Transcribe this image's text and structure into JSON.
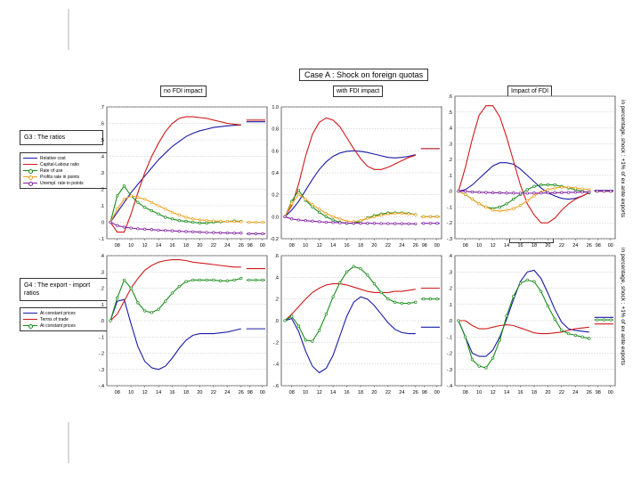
{
  "title": "Case A : Shock on foreign quotas",
  "colors": {
    "relative_cost": "#1a1aa6",
    "capital_labour": "#d11a1a",
    "rate_of_use": "#1a8c1a",
    "profits": "#f0a020",
    "unempl": "#8020a0"
  },
  "column_headers": [
    "no FDI impact",
    "with FDI impact",
    "Impact of FDI"
  ],
  "groups": {
    "g3": {
      "label": "G3 : The ratios",
      "legend": [
        {
          "name": "Relative cost",
          "color": "#1a1aa6",
          "marker": false
        },
        {
          "name": "Capital-Labour ratio",
          "color": "#d11a1a",
          "marker": false
        },
        {
          "name": "Rate of use",
          "color": "#1a8c1a",
          "marker": true
        },
        {
          "name": "Profits rate in points",
          "color": "#f0a020",
          "marker": true
        },
        {
          "name": "Unempl. rate in points",
          "color": "#8020a0",
          "marker": true
        }
      ]
    },
    "g4": {
      "label": "G4 : The export - import ratios",
      "legend": [
        {
          "name": "At constant prices",
          "color": "#1a1aa6",
          "marker": false
        },
        {
          "name": "Terms of trade",
          "color": "#d11a1a",
          "marker": false
        },
        {
          "name": "At constant prices",
          "color": "#1a8c1a",
          "marker": true
        }
      ]
    }
  },
  "right_labels": [
    "in percentage, shock : +1% of ex ante exports",
    "in percentage, shock : +1% of ex ante exports"
  ],
  "chart_data": [
    {
      "type": "line",
      "title": "no FDI impact",
      "ylim": [
        -0.1,
        0.7
      ],
      "yticks": [
        -0.1,
        0,
        0.1,
        0.2,
        0.3,
        0.4,
        0.5,
        0.6,
        0.7
      ],
      "ytick_labels": [
        "-.1",
        "0",
        ".1",
        ".2",
        ".3",
        ".4",
        ".5",
        ".6",
        ".7"
      ],
      "xtick_labels": [
        "08",
        "10",
        "12",
        "14",
        "16",
        "18",
        "20",
        "22",
        "24",
        "26",
        "98",
        "00"
      ],
      "series": [
        {
          "name": "Relative cost",
          "color": "#1a1aa6",
          "marker": false,
          "values": [
            0,
            0.06,
            0.12,
            0.18,
            0.23,
            0.28,
            0.33,
            0.38,
            0.42,
            0.46,
            0.49,
            0.52,
            0.54,
            0.555,
            0.565,
            0.575,
            0.58,
            0.585,
            0.588,
            0.59
          ],
          "long_run": 0.61
        },
        {
          "name": "Capital-Labour ratio",
          "color": "#d11a1a",
          "marker": false,
          "values": [
            0,
            -0.06,
            -0.06,
            0.05,
            0.18,
            0.3,
            0.4,
            0.48,
            0.55,
            0.6,
            0.63,
            0.64,
            0.64,
            0.635,
            0.63,
            0.62,
            0.61,
            0.6,
            0.595,
            0.59
          ],
          "long_run": 0.62
        },
        {
          "name": "Rate of use",
          "color": "#1a8c1a",
          "marker": true,
          "values": [
            0,
            0.16,
            0.22,
            0.16,
            0.12,
            0.09,
            0.07,
            0.05,
            0.03,
            0.02,
            0.01,
            0.005,
            0,
            -0.005,
            -0.005,
            0,
            0.003,
            0.005,
            0.007,
            0.005
          ],
          "long_run": 0
        },
        {
          "name": "Profits rate in points",
          "color": "#f0a020",
          "marker": true,
          "values": [
            0,
            0.08,
            0.14,
            0.16,
            0.15,
            0.14,
            0.12,
            0.1,
            0.08,
            0.06,
            0.045,
            0.03,
            0.02,
            0.015,
            0.01,
            0.008,
            0.006,
            0.005,
            0.004,
            0.003
          ],
          "long_run": 0
        },
        {
          "name": "Unempl. rate in points",
          "color": "#8020a0",
          "marker": true,
          "values": [
            0,
            -0.02,
            -0.03,
            -0.035,
            -0.04,
            -0.042,
            -0.045,
            -0.048,
            -0.05,
            -0.052,
            -0.055,
            -0.057,
            -0.058,
            -0.06,
            -0.062,
            -0.063,
            -0.064,
            -0.065,
            -0.066,
            -0.066
          ],
          "long_run": -0.07
        }
      ]
    },
    {
      "type": "line",
      "title": "with FDI impact",
      "ylim": [
        -0.2,
        1.0
      ],
      "yticks": [
        -0.2,
        0,
        0.2,
        0.4,
        0.6,
        0.8,
        1.0
      ],
      "ytick_labels": [
        "-0.2",
        "0.0",
        "0.2",
        "0.4",
        "0.6",
        "0.8",
        "1.0"
      ],
      "xtick_labels": [
        "08",
        "10",
        "12",
        "14",
        "16",
        "18",
        "20",
        "22",
        "24",
        "26",
        "98",
        "00"
      ],
      "series": [
        {
          "name": "Relative cost",
          "color": "#1a1aa6",
          "marker": false,
          "values": [
            0,
            0.06,
            0.14,
            0.24,
            0.34,
            0.43,
            0.5,
            0.55,
            0.58,
            0.595,
            0.6,
            0.595,
            0.585,
            0.57,
            0.555,
            0.54,
            0.535,
            0.54,
            0.55,
            0.565
          ],
          "long_run": 0.62
        },
        {
          "name": "Capital-Labour ratio",
          "color": "#d11a1a",
          "marker": false,
          "values": [
            0,
            0.1,
            0.3,
            0.55,
            0.75,
            0.86,
            0.9,
            0.88,
            0.82,
            0.72,
            0.62,
            0.53,
            0.46,
            0.43,
            0.43,
            0.45,
            0.48,
            0.51,
            0.54,
            0.56
          ],
          "long_run": 0.62
        },
        {
          "name": "Rate of use",
          "color": "#1a8c1a",
          "marker": true,
          "values": [
            0,
            0.14,
            0.24,
            0.15,
            0.09,
            0.04,
            0,
            -0.03,
            -0.05,
            -0.06,
            -0.06,
            -0.04,
            -0.01,
            0.01,
            0.025,
            0.035,
            0.035,
            0.035,
            0.03,
            0.02
          ],
          "long_run": 0
        },
        {
          "name": "Profits rate in points",
          "color": "#f0a020",
          "marker": true,
          "values": [
            0,
            0.12,
            0.2,
            0.16,
            0.11,
            0.07,
            0.03,
            0,
            -0.02,
            -0.04,
            -0.045,
            -0.035,
            -0.015,
            0,
            0.015,
            0.025,
            0.03,
            0.03,
            0.025,
            0.02
          ],
          "long_run": 0
        },
        {
          "name": "Unempl. rate in points",
          "color": "#8020a0",
          "marker": true,
          "values": [
            0,
            -0.02,
            -0.03,
            -0.035,
            -0.04,
            -0.045,
            -0.05,
            -0.052,
            -0.055,
            -0.057,
            -0.058,
            -0.06,
            -0.06,
            -0.06,
            -0.062,
            -0.062,
            -0.063,
            -0.063,
            -0.064,
            -0.065
          ],
          "long_run": -0.06
        }
      ]
    },
    {
      "type": "line",
      "title": "Impact of FDI",
      "ylim": [
        -0.3,
        0.6
      ],
      "yticks": [
        -0.3,
        -0.2,
        -0.1,
        0,
        0.1,
        0.2,
        0.3,
        0.4,
        0.5,
        0.6
      ],
      "ytick_labels": [
        "-.3",
        "-.2",
        "-.1",
        ".0",
        ".1",
        ".2",
        ".3",
        ".4",
        ".5",
        ".6"
      ],
      "xtick_labels": [
        "08",
        "10",
        "12",
        "14",
        "16",
        "18",
        "20",
        "22",
        "24",
        "26",
        "98",
        "00"
      ],
      "series": [
        {
          "name": "Relative cost",
          "color": "#1a1aa6",
          "marker": false,
          "values": [
            0,
            0.01,
            0.04,
            0.08,
            0.12,
            0.16,
            0.18,
            0.18,
            0.17,
            0.14,
            0.1,
            0.06,
            0.02,
            -0.01,
            -0.03,
            -0.045,
            -0.05,
            -0.045,
            -0.03,
            -0.01
          ],
          "long_run": 0.005
        },
        {
          "name": "Capital-Labour ratio",
          "color": "#d11a1a",
          "marker": false,
          "values": [
            0,
            0.15,
            0.33,
            0.48,
            0.54,
            0.54,
            0.47,
            0.34,
            0.19,
            0.04,
            -0.08,
            -0.15,
            -0.2,
            -0.2,
            -0.17,
            -0.12,
            -0.08,
            -0.05,
            -0.03,
            -0.01
          ],
          "long_run": 0
        },
        {
          "name": "Rate of use",
          "color": "#1a8c1a",
          "marker": true,
          "values": [
            0,
            -0.02,
            -0.05,
            -0.08,
            -0.1,
            -0.11,
            -0.1,
            -0.08,
            -0.05,
            -0.02,
            0.01,
            0.03,
            0.04,
            0.04,
            0.04,
            0.03,
            0.02,
            0.01,
            0,
            -0.01
          ],
          "long_run": 0
        },
        {
          "name": "Profits rate in points",
          "color": "#f0a020",
          "marker": true,
          "values": [
            0,
            -0.02,
            -0.05,
            -0.08,
            -0.1,
            -0.12,
            -0.125,
            -0.12,
            -0.11,
            -0.09,
            -0.06,
            -0.03,
            -0.005,
            0.01,
            0.02,
            0.025,
            0.025,
            0.02,
            0.015,
            0.01
          ],
          "long_run": 0
        },
        {
          "name": "Unempl. rate in points",
          "color": "#8020a0",
          "marker": true,
          "values": [
            0,
            0,
            -0.005,
            -0.007,
            -0.008,
            -0.01,
            -0.01,
            -0.012,
            -0.012,
            -0.013,
            -0.013,
            -0.012,
            -0.012,
            -0.011,
            -0.01,
            -0.009,
            -0.008,
            -0.007,
            -0.006,
            -0.005
          ],
          "long_run": 0
        }
      ]
    },
    {
      "type": "line",
      "title": "no FDI impact",
      "ylim": [
        -0.4,
        0.4
      ],
      "yticks": [
        -0.4,
        -0.3,
        -0.2,
        -0.1,
        0,
        0.1,
        0.2,
        0.3,
        0.4
      ],
      "ytick_labels": [
        "-.4",
        "-.3",
        "-.2",
        "-.1",
        ".0",
        ".1",
        ".2",
        ".3",
        ".4"
      ],
      "xtick_labels": [
        "08",
        "10",
        "12",
        "14",
        "16",
        "18",
        "20",
        "22",
        "24",
        "26",
        "98",
        "00"
      ],
      "series": [
        {
          "name": "At constant prices",
          "color": "#1a1aa6",
          "marker": false,
          "values": [
            0,
            0.12,
            0.13,
            -0.02,
            -0.16,
            -0.25,
            -0.29,
            -0.3,
            -0.28,
            -0.23,
            -0.17,
            -0.12,
            -0.09,
            -0.08,
            -0.08,
            -0.08,
            -0.075,
            -0.07,
            -0.06,
            -0.05
          ],
          "long_run": -0.05
        },
        {
          "name": "Terms of trade",
          "color": "#d11a1a",
          "marker": false,
          "values": [
            0,
            0.04,
            0.12,
            0.2,
            0.26,
            0.31,
            0.34,
            0.36,
            0.37,
            0.375,
            0.375,
            0.37,
            0.36,
            0.355,
            0.35,
            0.345,
            0.34,
            0.335,
            0.33,
            0.33
          ],
          "long_run": 0.32
        },
        {
          "name": "At constant prices",
          "color": "#1a8c1a",
          "marker": true,
          "values": [
            0,
            0.14,
            0.25,
            0.2,
            0.11,
            0.06,
            0.05,
            0.07,
            0.12,
            0.17,
            0.21,
            0.24,
            0.25,
            0.25,
            0.25,
            0.25,
            0.245,
            0.245,
            0.25,
            0.26
          ],
          "long_run": 0.25
        }
      ]
    },
    {
      "type": "line",
      "title": "with FDI impact",
      "ylim": [
        -0.6,
        0.6
      ],
      "yticks": [
        -0.6,
        -0.4,
        -0.2,
        0,
        0.2,
        0.4,
        0.6
      ],
      "ytick_labels": [
        "-.6",
        "-.4",
        "-.2",
        ".0",
        ".2",
        ".4",
        ".6"
      ],
      "xtick_labels": [
        "08",
        "10",
        "12",
        "14",
        "16",
        "18",
        "20",
        "22",
        "24",
        "26",
        "98",
        "00"
      ],
      "series": [
        {
          "name": "At constant prices",
          "color": "#1a1aa6",
          "marker": false,
          "values": [
            0,
            0.02,
            -0.1,
            -0.28,
            -0.42,
            -0.48,
            -0.44,
            -0.32,
            -0.14,
            0.04,
            0.17,
            0.22,
            0.2,
            0.14,
            0.06,
            -0.02,
            -0.08,
            -0.11,
            -0.12,
            -0.12
          ],
          "long_run": -0.06
        },
        {
          "name": "Terms of trade",
          "color": "#d11a1a",
          "marker": false,
          "values": [
            0,
            0.06,
            0.13,
            0.2,
            0.26,
            0.3,
            0.33,
            0.34,
            0.34,
            0.33,
            0.31,
            0.29,
            0.27,
            0.26,
            0.26,
            0.26,
            0.27,
            0.27,
            0.28,
            0.29
          ],
          "long_run": 0.3
        },
        {
          "name": "At constant prices",
          "color": "#1a8c1a",
          "marker": true,
          "values": [
            0,
            0.04,
            -0.05,
            -0.18,
            -0.19,
            -0.09,
            0.06,
            0.22,
            0.35,
            0.45,
            0.5,
            0.48,
            0.42,
            0.34,
            0.26,
            0.2,
            0.17,
            0.16,
            0.16,
            0.17
          ],
          "long_run": 0.2
        }
      ]
    },
    {
      "type": "line",
      "title": "Impact of FDI",
      "ylim": [
        -0.4,
        0.4
      ],
      "yticks": [
        -0.4,
        -0.3,
        -0.2,
        -0.1,
        0,
        0.1,
        0.2,
        0.3,
        0.4
      ],
      "ytick_labels": [
        "-.4",
        "-.3",
        "-.2",
        "-.1",
        ".0",
        ".1",
        ".2",
        ".3",
        ".4"
      ],
      "xtick_labels": [
        "08",
        "10",
        "12",
        "14",
        "16",
        "18",
        "20",
        "22",
        "24",
        "26",
        "98",
        "00"
      ],
      "series": [
        {
          "name": "At constant prices",
          "color": "#1a1aa6",
          "marker": false,
          "values": [
            0,
            -0.1,
            -0.2,
            -0.22,
            -0.22,
            -0.18,
            -0.1,
            0.01,
            0.13,
            0.24,
            0.3,
            0.31,
            0.26,
            0.17,
            0.07,
            -0.01,
            -0.05,
            -0.06,
            -0.065,
            -0.07
          ],
          "long_run": 0.02
        },
        {
          "name": "Terms of trade",
          "color": "#d11a1a",
          "marker": false,
          "values": [
            0,
            0,
            -0.03,
            -0.05,
            -0.05,
            -0.04,
            -0.03,
            -0.025,
            -0.03,
            -0.045,
            -0.06,
            -0.075,
            -0.08,
            -0.08,
            -0.075,
            -0.07,
            -0.06,
            -0.05,
            -0.045,
            -0.04
          ],
          "long_run": -0.02
        },
        {
          "name": "At constant prices",
          "color": "#1a8c1a",
          "marker": true,
          "values": [
            0,
            -0.1,
            -0.24,
            -0.28,
            -0.29,
            -0.23,
            -0.12,
            0.03,
            0.15,
            0.23,
            0.25,
            0.24,
            0.18,
            0.09,
            0.01,
            -0.06,
            -0.08,
            -0.09,
            -0.1,
            -0.11
          ],
          "long_run": 0.005
        }
      ]
    }
  ]
}
